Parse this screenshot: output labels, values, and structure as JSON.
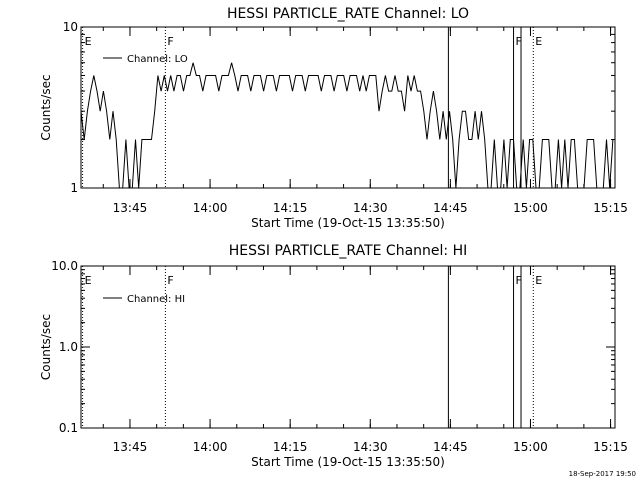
{
  "footer": {
    "timestamp": "18-Sep-2017 19:50"
  },
  "chart_data": [
    {
      "type": "line",
      "title": "HESSI PARTICLE_RATE Channel: LO",
      "xlabel": "Start Time (19-Oct-15 13:35:50)",
      "ylabel": "Counts/sec",
      "xaxis_time_start": "13:35:50",
      "xlim_minutes": [
        0,
        100
      ],
      "ylim": [
        1,
        10
      ],
      "yscale": "log",
      "xticks": [
        {
          "label": "13:45",
          "value": 9.17
        },
        {
          "label": "14:00",
          "value": 24.17
        },
        {
          "label": "14:15",
          "value": 39.17
        },
        {
          "label": "14:30",
          "value": 54.17
        },
        {
          "label": "14:45",
          "value": 69.17
        },
        {
          "label": "15:00",
          "value": 84.17
        },
        {
          "label": "15:15",
          "value": 99.17
        }
      ],
      "yticks": [
        {
          "label": "1",
          "value": 1
        },
        {
          "label": "10",
          "value": 10
        }
      ],
      "legend": {
        "label": "Channel: LO",
        "position": "top-left"
      },
      "series": [
        {
          "name": "Channel: LO",
          "x": [
            0,
            0.6,
            1.2,
            1.8,
            2.4,
            3.0,
            3.6,
            4.2,
            4.8,
            5.4,
            6.0,
            6.6,
            7.2,
            7.8,
            8.4,
            9.0,
            9.6,
            10.2,
            10.8,
            11.4,
            12.0,
            12.6,
            13.2,
            13.8,
            14.4,
            15.0,
            15.6,
            16.2,
            16.8,
            17.4,
            18.0,
            18.6,
            19.2,
            19.8,
            20.4,
            21.0,
            21.6,
            22.2,
            22.8,
            23.4,
            24.0,
            24.6,
            25.2,
            25.8,
            26.4,
            27.0,
            27.6,
            28.2,
            28.8,
            29.4,
            30.0,
            30.6,
            31.2,
            31.8,
            32.4,
            33.0,
            33.6,
            34.2,
            34.8,
            35.4,
            36.0,
            36.6,
            37.2,
            37.8,
            38.4,
            39.0,
            39.6,
            40.2,
            40.8,
            41.4,
            42.0,
            42.6,
            43.2,
            43.8,
            44.4,
            45.0,
            45.6,
            46.2,
            46.8,
            47.4,
            48.0,
            48.6,
            49.2,
            49.8,
            50.4,
            51.0,
            51.6,
            52.2,
            52.8,
            53.4,
            54.0,
            54.6,
            55.2,
            55.8,
            56.4,
            57.0,
            57.6,
            58.2,
            58.8,
            59.4,
            60.0,
            60.6,
            61.2,
            61.8,
            62.4,
            63.0,
            63.6,
            64.2,
            64.8,
            65.4,
            66.0,
            66.6,
            67.2,
            67.8,
            68.4,
            69.0,
            69.6,
            70.2,
            70.8,
            71.4,
            72.0,
            72.6,
            73.2,
            73.8,
            74.4,
            75.0,
            75.6,
            76.2,
            76.8,
            77.4,
            78.0,
            78.6,
            79.2,
            79.8,
            80.4,
            81.0,
            81.6,
            82.2,
            82.8,
            83.4,
            84.0,
            84.6,
            85.2,
            85.8,
            86.4,
            87.0,
            87.6,
            88.2,
            88.8,
            89.4,
            90.0,
            90.6,
            91.2,
            91.8,
            92.4,
            93.0,
            93.6,
            94.2,
            94.8,
            95.4,
            96.0,
            96.6,
            97.2,
            97.8,
            98.4,
            99.0,
            99.6
          ],
          "values": [
            3,
            2,
            3,
            4,
            5,
            4,
            3,
            4,
            3,
            2,
            3,
            2,
            1,
            1,
            2,
            1,
            1,
            2,
            1,
            2,
            2,
            2,
            2,
            3,
            5,
            4,
            5,
            4,
            5,
            4,
            5,
            5,
            4,
            5,
            5,
            6,
            5,
            5,
            4,
            5,
            5,
            5,
            5,
            4,
            5,
            5,
            5,
            6,
            5,
            4,
            5,
            5,
            5,
            4,
            5,
            5,
            5,
            4,
            5,
            5,
            5,
            4,
            5,
            5,
            5,
            5,
            4,
            5,
            5,
            5,
            4,
            5,
            5,
            5,
            5,
            4,
            5,
            5,
            5,
            4,
            5,
            5,
            5,
            4,
            5,
            5,
            5,
            4,
            5,
            4,
            5,
            5,
            5,
            3,
            4,
            5,
            4,
            4,
            5,
            4,
            4,
            3,
            5,
            4,
            5,
            4,
            4,
            3,
            2,
            3,
            4,
            3,
            2,
            3,
            2,
            3,
            2,
            1,
            2,
            3,
            3,
            2,
            2,
            3,
            2,
            3,
            2,
            1,
            1,
            2,
            1,
            1,
            2,
            1,
            2,
            2,
            1,
            1,
            2,
            1,
            2,
            2,
            1,
            1,
            2,
            2,
            2,
            1,
            1,
            2,
            1,
            2,
            1,
            2,
            2,
            1,
            1,
            1,
            2,
            2,
            2,
            1,
            1,
            1,
            2,
            1,
            2
          ]
        }
      ],
      "flags": [
        {
          "x": 0.3,
          "label": "E",
          "style": "dotted"
        },
        {
          "x": 15.8,
          "label": "F",
          "style": "dotted"
        },
        {
          "x": 68.8,
          "label": "",
          "style": "solid"
        },
        {
          "x": 81.0,
          "label": "F",
          "style": "solid"
        },
        {
          "x": 82.4,
          "label": "",
          "style": "solid"
        },
        {
          "x": 84.7,
          "label": "E",
          "style": "dotted"
        },
        {
          "x": 100.8,
          "label": "",
          "style": "dotted"
        }
      ]
    },
    {
      "type": "line",
      "title": "HESSI PARTICLE_RATE Channel: HI",
      "xlabel": "Start Time (19-Oct-15 13:35:50)",
      "ylabel": "Counts/sec",
      "xaxis_time_start": "13:35:50",
      "xlim_minutes": [
        0,
        100
      ],
      "ylim": [
        0.1,
        10.0
      ],
      "yscale": "log",
      "xticks": [
        {
          "label": "13:45",
          "value": 9.17
        },
        {
          "label": "14:00",
          "value": 24.17
        },
        {
          "label": "14:15",
          "value": 39.17
        },
        {
          "label": "14:30",
          "value": 54.17
        },
        {
          "label": "14:45",
          "value": 69.17
        },
        {
          "label": "15:00",
          "value": 84.17
        },
        {
          "label": "15:15",
          "value": 99.17
        }
      ],
      "yticks": [
        {
          "label": "0.1",
          "value": 0.1
        },
        {
          "label": "1.0",
          "value": 1.0
        },
        {
          "label": "10.0",
          "value": 10.0
        }
      ],
      "legend": {
        "label": "Channel: HI",
        "position": "top-left"
      },
      "series": [
        {
          "name": "Channel: HI",
          "x": [],
          "values": []
        }
      ],
      "flags": [
        {
          "x": 0.3,
          "label": "E",
          "style": "dotted"
        },
        {
          "x": 15.8,
          "label": "F",
          "style": "dotted"
        },
        {
          "x": 68.8,
          "label": "",
          "style": "solid"
        },
        {
          "x": 81.0,
          "label": "F",
          "style": "solid"
        },
        {
          "x": 82.4,
          "label": "",
          "style": "solid"
        },
        {
          "x": 84.7,
          "label": "E",
          "style": "dotted"
        },
        {
          "x": 100.8,
          "label": "",
          "style": "dotted"
        }
      ]
    }
  ]
}
